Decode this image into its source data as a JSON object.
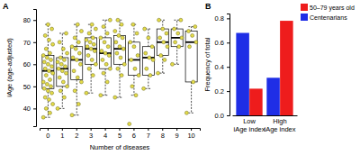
{
  "chart_data": [
    {
      "type": "box",
      "title": "A",
      "x_label": "Number of diseases",
      "y_label": "iAge (age-adjusted)",
      "categories": [
        "0",
        "1",
        "2",
        "3",
        "4",
        "5",
        "6",
        "7",
        "8",
        "9",
        "10"
      ],
      "ylim": [
        32,
        85
      ],
      "yticks": [
        40,
        50,
        60,
        70,
        80
      ],
      "color": "#e5dc4a",
      "boxes": [
        {
          "whislo": 36,
          "q1": 49,
          "med": 57,
          "q3": 64,
          "whishi": 78
        },
        {
          "whislo": 40,
          "q1": 50,
          "med": 58,
          "q3": 63,
          "whishi": 74
        },
        {
          "whislo": 37,
          "q1": 53,
          "med": 62,
          "q3": 68,
          "whishi": 78
        },
        {
          "whislo": 47,
          "q1": 60,
          "med": 67,
          "q3": 72,
          "whishi": 78
        },
        {
          "whislo": 46,
          "q1": 58,
          "med": 65,
          "q3": 72,
          "whishi": 80
        },
        {
          "whislo": 45,
          "q1": 60,
          "med": 67,
          "q3": 73,
          "whishi": 80
        },
        {
          "whislo": 46,
          "q1": 55,
          "med": 62,
          "q3": 70,
          "whishi": 78
        },
        {
          "whislo": 49,
          "q1": 55,
          "med": 63,
          "q3": 68,
          "whishi": 76
        },
        {
          "whislo": 56,
          "q1": 64,
          "med": 70,
          "q3": 76,
          "whishi": 80
        },
        {
          "whislo": 60,
          "q1": 68,
          "med": 72,
          "q3": 76,
          "whishi": 80
        },
        {
          "whislo": 38,
          "q1": 52,
          "med": 70,
          "q3": 75,
          "whishi": 77
        }
      ],
      "points": [
        [
          36,
          38,
          40,
          42,
          44,
          45,
          47,
          48,
          49,
          50,
          51,
          52,
          53,
          55,
          56,
          57,
          58,
          59,
          60,
          61,
          62,
          63,
          64,
          65,
          67,
          69,
          71,
          73,
          76,
          78
        ],
        [
          40,
          45,
          48,
          50,
          52,
          54,
          56,
          57,
          58,
          59,
          60,
          61,
          62,
          63,
          65,
          67,
          70,
          74
        ],
        [
          37,
          42,
          48,
          52,
          54,
          57,
          60,
          62,
          63,
          65,
          67,
          68,
          70,
          72,
          75,
          78
        ],
        [
          47,
          55,
          58,
          60,
          62,
          64,
          66,
          67,
          68,
          69,
          70,
          71,
          72,
          74,
          76,
          78
        ],
        [
          46,
          52,
          56,
          58,
          60,
          62,
          64,
          65,
          66,
          68,
          70,
          72,
          74,
          77,
          80
        ],
        [
          45,
          55,
          58,
          60,
          63,
          65,
          67,
          68,
          70,
          72,
          73,
          75,
          78,
          80
        ],
        [
          33,
          46,
          50,
          55,
          58,
          62,
          64,
          68,
          70,
          74,
          78
        ],
        [
          49,
          55,
          58,
          62,
          63,
          65,
          68,
          72,
          76
        ],
        [
          56,
          62,
          64,
          68,
          70,
          72,
          74,
          76,
          80
        ],
        [
          60,
          68,
          70,
          72,
          74,
          76,
          80
        ],
        [
          38,
          52,
          68,
          70,
          73,
          75,
          77
        ]
      ]
    },
    {
      "type": "bar",
      "title": "B",
      "y_label": "Frequency of total",
      "categories": [
        "Low\niAge index",
        "High\niAge index"
      ],
      "series": [
        {
          "name": "Centenarians",
          "color": "#1f2ee6",
          "values": [
            0.68,
            0.31
          ]
        },
        {
          "name": "50–79 years old",
          "color": "#ee1c1c",
          "values": [
            0.22,
            0.78
          ]
        }
      ],
      "ylim": [
        0,
        0.84
      ],
      "yticks": [
        {
          "value": 0,
          "label": "0.0"
        },
        0.2,
        0.4,
        0.6,
        0.8
      ],
      "legend": "top right"
    }
  ]
}
